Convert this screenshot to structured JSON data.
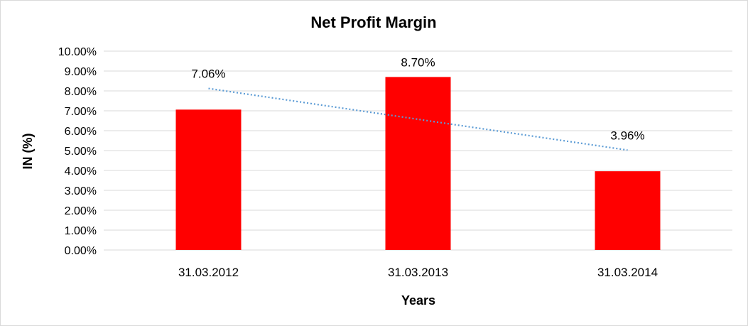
{
  "chart_data": {
    "type": "bar",
    "title": "Net Profit Margin",
    "xlabel": "Years",
    "ylabel": "IN (%)",
    "categories": [
      "31.03.2012",
      "31.03.2013",
      "31.03.2014"
    ],
    "values": [
      7.06,
      8.7,
      3.96
    ],
    "data_labels": [
      "7.06%",
      "8.70%",
      "3.96%"
    ],
    "ylim": [
      0,
      10
    ],
    "yticks": [
      0,
      1,
      2,
      3,
      4,
      5,
      6,
      7,
      8,
      9,
      10
    ],
    "ytick_labels": [
      "0.00%",
      "1.00%",
      "2.00%",
      "3.00%",
      "4.00%",
      "5.00%",
      "6.00%",
      "7.00%",
      "8.00%",
      "9.00%",
      "10.00%"
    ],
    "grid": true,
    "legend": "none",
    "trendline": {
      "type": "linear",
      "style": "dotted"
    },
    "colors": {
      "bar": "#ff0000",
      "trendline": "#5b9bd5",
      "grid": "#d9d9d9"
    }
  }
}
